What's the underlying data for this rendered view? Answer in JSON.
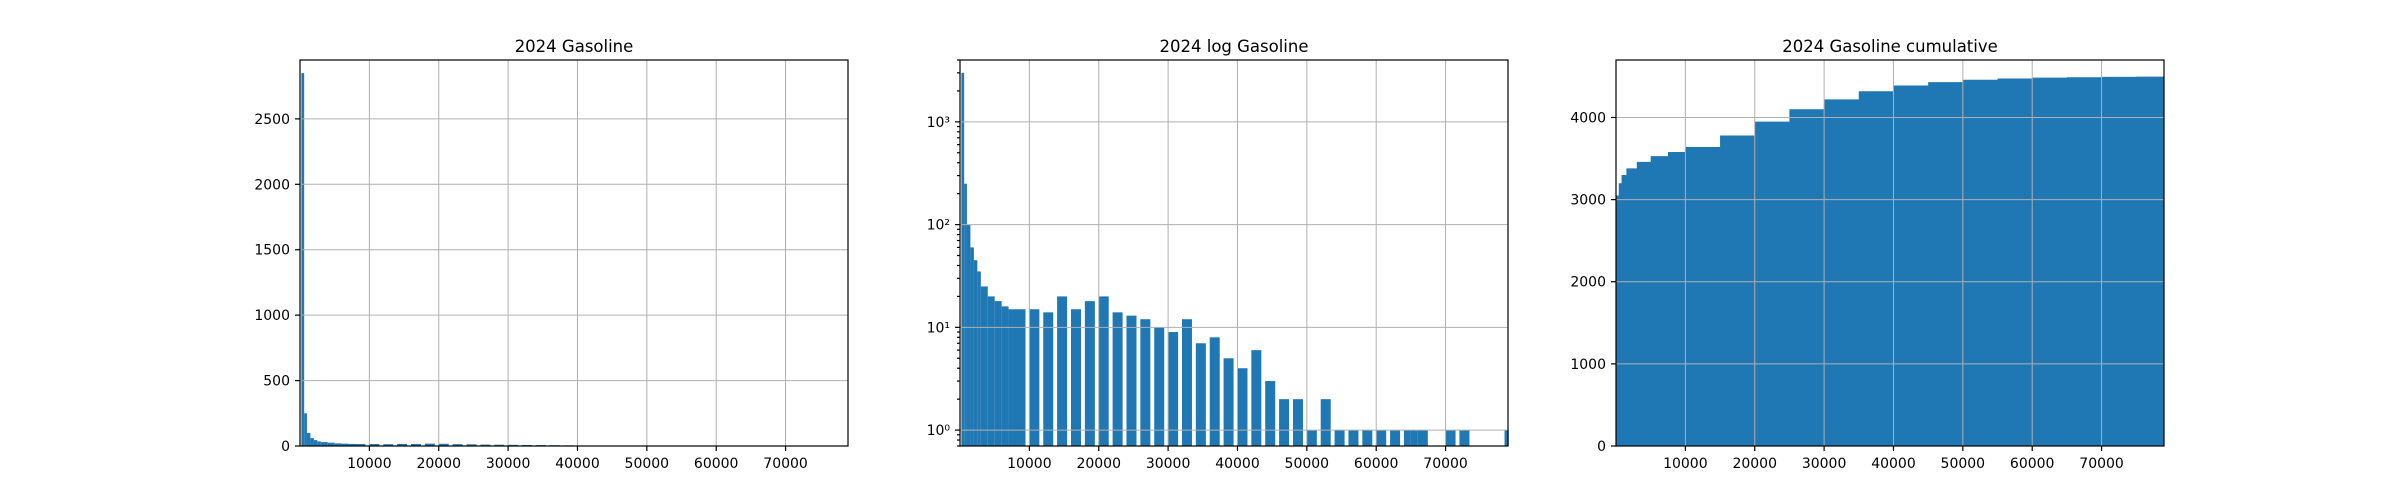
{
  "chart_data": [
    {
      "type": "bar",
      "title": "2024 Gasoline",
      "xlabel": "",
      "ylabel": "",
      "y_scale": "linear",
      "xlim": [
        0,
        79000
      ],
      "ylim": [
        0,
        2950
      ],
      "x_ticks": [
        10000,
        20000,
        30000,
        40000,
        50000,
        60000,
        70000
      ],
      "y_ticks": [
        0,
        500,
        1000,
        1500,
        2000,
        2500
      ],
      "x_tick_labels": [
        "10000",
        "20000",
        "30000",
        "40000",
        "50000",
        "60000",
        "70000"
      ],
      "y_tick_labels": [
        "0",
        "500",
        "1000",
        "1500",
        "2000",
        "2500"
      ],
      "grid": true,
      "color": "#1f77b4",
      "x": [
        200,
        600,
        1000,
        1500,
        2000,
        2500,
        3000,
        4000,
        5000,
        6000,
        7000,
        8000,
        10000,
        12000,
        14000,
        16000,
        18000,
        20000,
        22000,
        24000,
        26000,
        28000,
        30000,
        32000,
        34000,
        36000,
        38000,
        40000,
        42000,
        44000
      ],
      "values": [
        2850,
        250,
        100,
        60,
        45,
        35,
        30,
        25,
        20,
        18,
        16,
        15,
        15,
        14,
        16,
        15,
        18,
        17,
        14,
        13,
        11,
        10,
        9,
        8,
        7,
        6,
        5,
        4,
        3,
        2
      ]
    },
    {
      "type": "bar",
      "title": "2024 log Gasoline",
      "xlabel": "",
      "ylabel": "",
      "y_scale": "log",
      "xlim": [
        0,
        79000
      ],
      "ylim": [
        0.7,
        4000
      ],
      "x_ticks": [
        10000,
        20000,
        30000,
        40000,
        50000,
        60000,
        70000
      ],
      "y_ticks": [
        1,
        10,
        100,
        1000
      ],
      "x_tick_labels": [
        "10000",
        "20000",
        "30000",
        "40000",
        "50000",
        "60000",
        "70000"
      ],
      "y_tick_labels": [
        "10⁰",
        "10¹",
        "10²",
        "10³"
      ],
      "grid": true,
      "color": "#1f77b4",
      "x": [
        200,
        600,
        1000,
        1500,
        2000,
        2500,
        3000,
        4000,
        5000,
        6000,
        7000,
        8000,
        10000,
        12000,
        14000,
        16000,
        18000,
        20000,
        22000,
        24000,
        26000,
        28000,
        30000,
        32000,
        34000,
        36000,
        38000,
        40000,
        42000,
        44000,
        46000,
        48000,
        50000,
        52000,
        54000,
        56000,
        58000,
        60000,
        62000,
        64000,
        65000,
        66000,
        70000,
        72000,
        78500
      ],
      "values": [
        3000,
        250,
        100,
        60,
        45,
        35,
        25,
        20,
        18,
        16,
        15,
        15,
        15,
        14,
        20,
        15,
        18,
        20,
        14,
        13,
        12,
        10,
        9,
        12,
        7,
        8,
        5,
        4,
        6,
        3,
        2,
        2,
        1,
        2,
        1,
        1,
        1,
        1,
        1,
        1,
        1,
        1,
        1,
        1,
        1
      ]
    },
    {
      "type": "area",
      "title": "2024 Gasoline cumulative",
      "xlabel": "",
      "ylabel": "",
      "y_scale": "linear",
      "xlim": [
        0,
        79000
      ],
      "ylim": [
        0,
        4700
      ],
      "x_ticks": [
        10000,
        20000,
        30000,
        40000,
        50000,
        60000,
        70000
      ],
      "y_ticks": [
        0,
        1000,
        2000,
        3000,
        4000
      ],
      "x_tick_labels": [
        "10000",
        "20000",
        "30000",
        "40000",
        "50000",
        "60000",
        "70000"
      ],
      "y_tick_labels": [
        "0",
        "1000",
        "2000",
        "3000",
        "4000"
      ],
      "grid": true,
      "color": "#1f77b4",
      "x": [
        0,
        400,
        800,
        1500,
        3000,
        5000,
        7500,
        10000,
        15000,
        20000,
        25000,
        30000,
        35000,
        40000,
        45000,
        50000,
        55000,
        60000,
        65000,
        70000,
        75000,
        79000
      ],
      "values": [
        3050,
        3200,
        3300,
        3380,
        3460,
        3530,
        3580,
        3640,
        3780,
        3950,
        4100,
        4220,
        4320,
        4390,
        4430,
        4460,
        4475,
        4485,
        4490,
        4495,
        4498,
        4500
      ]
    }
  ]
}
